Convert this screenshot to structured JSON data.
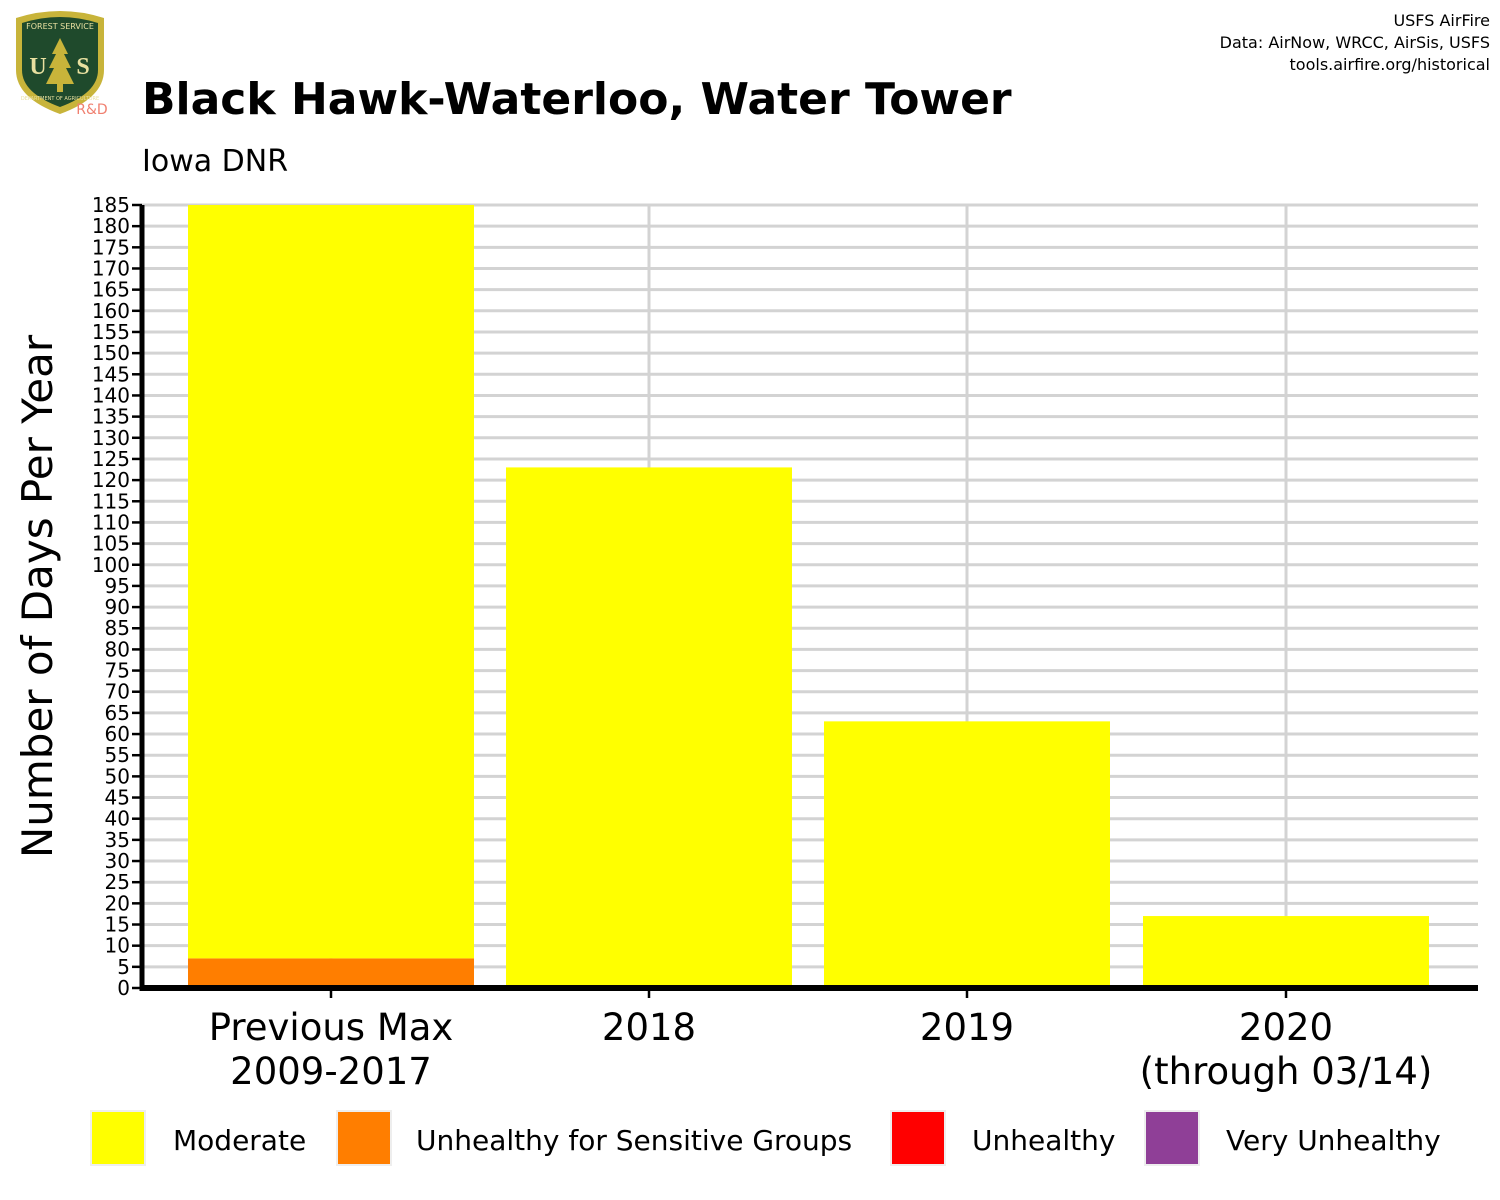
{
  "header": {
    "title": "Black Hawk-Waterloo, Water Tower",
    "subtitle": "Iowa DNR",
    "credits": [
      "USFS AirFire",
      "Data: AirNow, WRCC, AirSis, USFS",
      "tools.airfire.org/historical"
    ]
  },
  "logo": {
    "top_text": "FOREST SERVICE",
    "mark": "US",
    "bottom_text": "DEPARTMENT OF AGRICULTURE",
    "badge": "R&D",
    "colors": {
      "shield": "#1f4a2c",
      "rim": "#c8b43a",
      "badge_text": "#f08070"
    }
  },
  "chart_data": {
    "type": "bar",
    "stacked": true,
    "ylabel": "Number of Days Per Year",
    "ylim": [
      0,
      185
    ],
    "ytick_step": 5,
    "grid": true,
    "categories": [
      [
        "Previous Max",
        "2009-2017"
      ],
      [
        "2018"
      ],
      [
        "2019"
      ],
      [
        "2020",
        "(through 03/14)"
      ]
    ],
    "series": [
      {
        "name": "Unhealthy for Sensitive Groups",
        "color": "#ff7e00",
        "values": [
          7,
          0,
          0,
          0
        ]
      },
      {
        "name": "Moderate",
        "color": "#ffff00",
        "values": [
          178,
          123,
          63,
          17
        ]
      }
    ]
  },
  "legend": {
    "position": "bottom",
    "items": [
      {
        "label": "Moderate",
        "color": "#ffff00"
      },
      {
        "label": "Unhealthy for Sensitive Groups",
        "color": "#ff7e00"
      },
      {
        "label": "Unhealthy",
        "color": "#ff0000"
      },
      {
        "label": "Very Unhealthy",
        "color": "#8f3f97"
      }
    ]
  }
}
